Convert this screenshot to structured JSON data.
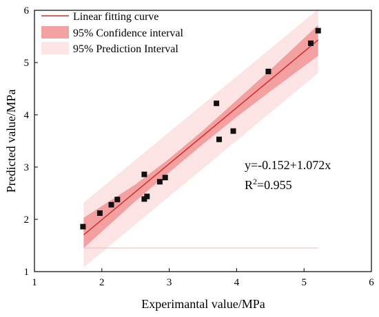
{
  "chart_data": {
    "type": "scatter",
    "xlabel": "Experimantal value/MPa",
    "ylabel": "Predicted value/MPa",
    "xlim": [
      1,
      6
    ],
    "ylim": [
      1,
      6
    ],
    "xticks": [
      "1",
      "2",
      "3",
      "4",
      "5",
      "6"
    ],
    "yticks": [
      "1",
      "2",
      "3",
      "4",
      "5",
      "6"
    ],
    "grid": false,
    "legend_position": "top-left",
    "legend": {
      "fit_label": "Linear fitting curve",
      "confidence_label": "95% Confidence interval",
      "prediction_label": "95% Prediction Interval"
    },
    "equation_text": "y=-0.152+1.072x",
    "r2_prefix": "R",
    "r2_sup": "2",
    "r2_value": "=0.955",
    "fit": {
      "intercept": -0.152,
      "slope": 1.072,
      "x_range": [
        1.73,
        5.21
      ]
    },
    "confidence_band": {
      "x": [
        1.73,
        2.5,
        3.0,
        3.5,
        4.0,
        4.5,
        5.21
      ],
      "lower": [
        1.45,
        2.35,
        2.9,
        3.44,
        3.96,
        4.45,
        5.13
      ],
      "upper": [
        2.03,
        2.67,
        3.16,
        3.7,
        4.28,
        4.86,
        5.72
      ]
    },
    "prediction_band": {
      "x": [
        1.73,
        5.21
      ],
      "lower": [
        1.08,
        4.8
      ],
      "upper": [
        2.32,
        6.02
      ]
    },
    "points": {
      "x": [
        1.72,
        1.97,
        2.14,
        2.23,
        2.63,
        2.63,
        2.67,
        2.86,
        2.94,
        3.7,
        3.74,
        3.95,
        4.47,
        5.1,
        5.21
      ],
      "y": [
        1.86,
        2.12,
        2.28,
        2.38,
        2.86,
        2.39,
        2.44,
        2.72,
        2.8,
        4.22,
        3.53,
        3.69,
        4.83,
        5.37,
        5.61
      ]
    },
    "colors": {
      "fit": "#d42a2a",
      "confidence": "#f2a0a0",
      "prediction": "#fde4e4",
      "points": "#111111"
    }
  }
}
